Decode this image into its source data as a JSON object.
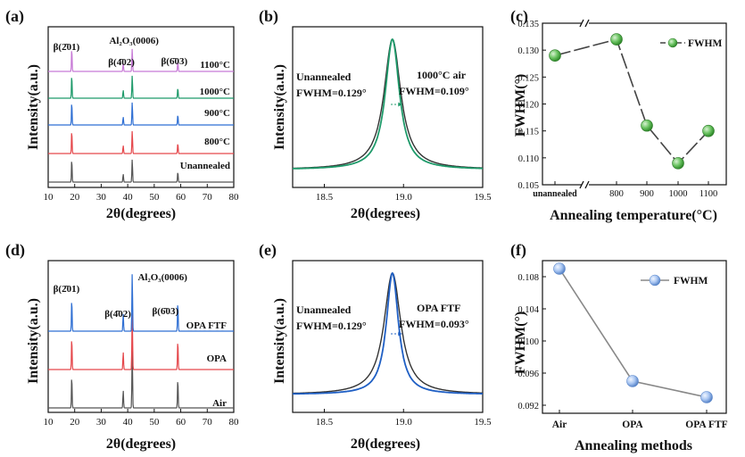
{
  "panels": {
    "a": {
      "letter": "(a)",
      "xlabel": "2θ(degrees)",
      "ylabel": "Intensity(a.u.)"
    },
    "b": {
      "letter": "(b)",
      "xlabel": "2θ(degrees)",
      "ylabel": "Intensity(a.u.)"
    },
    "c": {
      "letter": "(c)",
      "xlabel": "Annealing temperature(°C)",
      "ylabel": "FWHM(°)"
    },
    "d": {
      "letter": "(d)",
      "xlabel": "2θ(degrees)",
      "ylabel": "Intensity(a.u.)"
    },
    "e": {
      "letter": "(e)",
      "xlabel": "2θ(degrees)",
      "ylabel": "Intensity(a.u.)"
    },
    "f": {
      "letter": "(f)",
      "xlabel": "Annealing methods",
      "ylabel": "FWHM(°)"
    }
  },
  "chart_data": [
    {
      "id": "a",
      "type": "line",
      "xlabel": "2θ(degrees)",
      "ylabel": "Intensity(a.u.)",
      "xlim": [
        10,
        80
      ],
      "xticks": [
        10,
        20,
        30,
        40,
        50,
        60,
        70,
        80
      ],
      "peaks": [
        {
          "x": 18.9,
          "h": 1.0
        },
        {
          "x": 38.3,
          "h": 0.35
        },
        {
          "x": 41.7,
          "h": 1.0
        },
        {
          "x": 58.9,
          "h": 0.45
        }
      ],
      "peak_labels": [
        {
          "text": "β(2̄01)",
          "x": 18.9
        },
        {
          "text": "β(4̄02)",
          "x": 38.3
        },
        {
          "text": "Al₂O₃(0006)",
          "x": 41.7
        },
        {
          "text": "β(6̄03)",
          "x": 58.9
        }
      ],
      "series": [
        {
          "name": "Unannealed",
          "color": "#555555"
        },
        {
          "name": "800°C",
          "color": "#e5474b"
        },
        {
          "name": "900°C",
          "color": "#2f6fd3"
        },
        {
          "name": "1000°C",
          "color": "#1e9a6a"
        },
        {
          "name": "1100°C",
          "color": "#c77ad6"
        }
      ]
    },
    {
      "id": "b",
      "type": "line",
      "xlabel": "2θ(degrees)",
      "ylabel": "Intensity(a.u.)",
      "xlim": [
        18.3,
        19.5
      ],
      "xticks": [
        18.5,
        19.0,
        19.5
      ],
      "series": [
        {
          "name": "Unannealed",
          "color": "#333333",
          "center": 18.93,
          "fwhm": 0.129
        },
        {
          "name": "1000°C air",
          "color": "#1e9a6a",
          "center": 18.93,
          "fwhm": 0.109
        }
      ],
      "annotations": [
        {
          "text": "Unannealed",
          "color": "#222222"
        },
        {
          "text": "FWHM=0.129°",
          "color": "#222222"
        },
        {
          "text": "1000°C air",
          "color": "#1e9a6a"
        },
        {
          "text": "FWHM=0.109°",
          "color": "#1e9a6a"
        }
      ]
    },
    {
      "id": "c",
      "type": "line",
      "xlabel": "Annealing temperature(°C)",
      "ylabel": "FWHM(°)",
      "categories": [
        "unannealed",
        "800",
        "900",
        "1000",
        "1100"
      ],
      "values": [
        0.129,
        0.132,
        0.116,
        0.109,
        0.115
      ],
      "ylim": [
        0.105,
        0.135
      ],
      "yticks": [
        "0.105",
        "0.110",
        "0.115",
        "0.120",
        "0.125",
        "0.130",
        "0.135"
      ],
      "legend": "FWHM",
      "legend_position": "top-right",
      "color": "#5cb85c",
      "axis_break": true
    },
    {
      "id": "d",
      "type": "line",
      "xlabel": "2θ(degrees)",
      "ylabel": "Intensity(a.u.)",
      "xlim": [
        10,
        80
      ],
      "xticks": [
        10,
        20,
        30,
        40,
        50,
        60,
        70,
        80
      ],
      "peaks": [
        {
          "x": 18.9,
          "h": 0.55
        },
        {
          "x": 38.3,
          "h": 0.3
        },
        {
          "x": 41.7,
          "h": 1.0
        },
        {
          "x": 58.9,
          "h": 0.5
        }
      ],
      "peak_labels": [
        {
          "text": "β(2̄01)",
          "x": 18.9
        },
        {
          "text": "β(4̄02)",
          "x": 38.3
        },
        {
          "text": "Al₂O₃(0006)",
          "x": 41.7
        },
        {
          "text": "β(6̄03)",
          "x": 58.9
        }
      ],
      "series": [
        {
          "name": "Air",
          "color": "#555555"
        },
        {
          "name": "OPA",
          "color": "#e5474b"
        },
        {
          "name": "OPA FTF",
          "color": "#2f6fd3"
        }
      ]
    },
    {
      "id": "e",
      "type": "line",
      "xlabel": "2θ(degrees)",
      "ylabel": "Intensity(a.u.)",
      "xlim": [
        18.3,
        19.5
      ],
      "xticks": [
        18.5,
        19.0,
        19.5
      ],
      "series": [
        {
          "name": "Unannealed",
          "color": "#333333",
          "center": 18.93,
          "fwhm": 0.129
        },
        {
          "name": "OPA FTF",
          "color": "#1f5fc4",
          "center": 18.93,
          "fwhm": 0.093
        }
      ],
      "annotations": [
        {
          "text": "Unannealed",
          "color": "#222222"
        },
        {
          "text": "FWHM=0.129°",
          "color": "#222222"
        },
        {
          "text": "OPA FTF",
          "color": "#1f5fc4"
        },
        {
          "text": "FWHM=0.093°",
          "color": "#1f5fc4"
        }
      ]
    },
    {
      "id": "f",
      "type": "line",
      "xlabel": "Annealing methods",
      "ylabel": "FWHM(°)",
      "categories": [
        "Air",
        "OPA",
        "OPA FTF"
      ],
      "values": [
        0.109,
        0.095,
        0.093
      ],
      "ylim": [
        0.091,
        0.11
      ],
      "yticks": [
        "0.092",
        "0.096",
        "0.100",
        "0.104",
        "0.108"
      ],
      "legend": "FWHM",
      "legend_position": "top-right",
      "color": "#8fb3ea"
    }
  ]
}
